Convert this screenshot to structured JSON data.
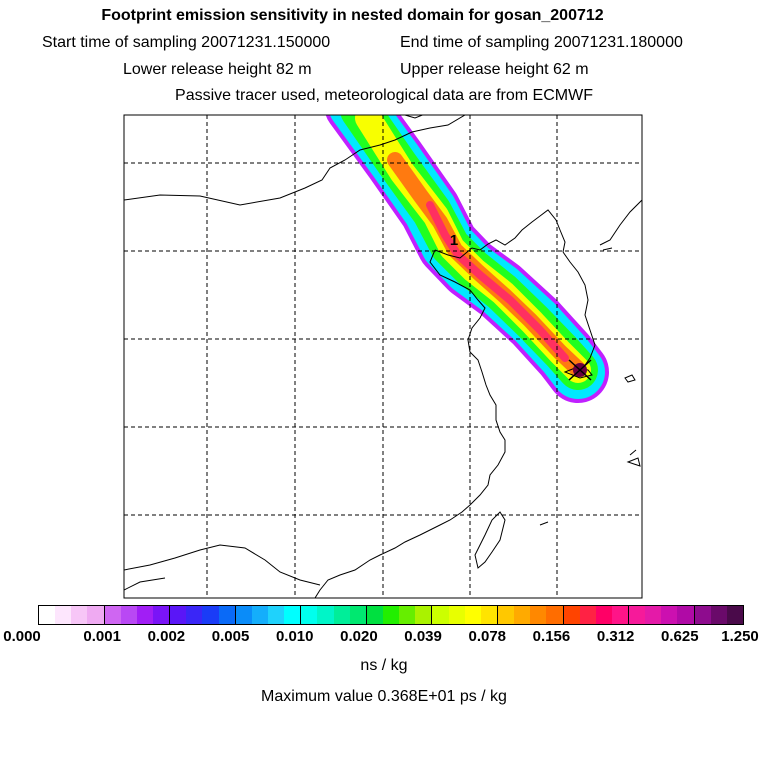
{
  "title": "Footprint emission sensitivity in nested domain for gosan_200712",
  "start_time": "Start time of sampling 20071231.150000",
  "end_time": "End time of sampling 20071231.180000",
  "lower_release": "Lower release height   82 m",
  "upper_release": "Upper release height   62 m",
  "tracer_info": "Passive tracer used, meteorological data are from ECMWF",
  "map": {
    "plume_marker_label": "1",
    "receptor": "gosan",
    "colors": {
      "plume_edge": "#c020ff",
      "plume_outer": "#00e8ff",
      "plume_mid": "#20ff20",
      "plume_yellow": "#f8ff00",
      "plume_orange": "#ff7a10",
      "plume_core": "#ff3060",
      "receptor": "#6a0040"
    }
  },
  "colorbar": {
    "tick_labels": [
      "0.000",
      "0.001",
      "0.002",
      "0.005",
      "0.010",
      "0.020",
      "0.039",
      "0.078",
      "0.156",
      "0.312",
      "0.625",
      "1.250"
    ],
    "colors": [
      "#ffffff",
      "#fde6fd",
      "#f7c6f7",
      "#efaaf2",
      "#cf66f2",
      "#b948f4",
      "#a11ef5",
      "#7a14f7",
      "#5a16f7",
      "#3a26f7",
      "#1a3cf7",
      "#0a6af7",
      "#0a8cf9",
      "#14aefb",
      "#1fd2fc",
      "#00ffff",
      "#00ffee",
      "#00f5c8",
      "#00ee99",
      "#00e870",
      "#00e040",
      "#22ef00",
      "#66ee00",
      "#aaf200",
      "#ccff00",
      "#e8ff00",
      "#ffff00",
      "#ffe400",
      "#ffc800",
      "#ffaa00",
      "#ff8800",
      "#ff6d00",
      "#ff4400",
      "#ff2244",
      "#ff0066",
      "#ff1488",
      "#f61a9a",
      "#e41aa8",
      "#cc10b0",
      "#b00aa6",
      "#8e0c8e",
      "#6a0a6a",
      "#4a0a4a"
    ],
    "unit": "ns / kg",
    "max_value": "Maximum value  0.368E+01 ps / kg"
  }
}
